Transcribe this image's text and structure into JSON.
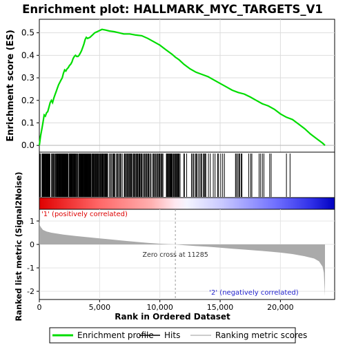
{
  "chart_data": [
    {
      "type": "line",
      "panel": "enrichment-profile",
      "title": "Enrichment plot: HALLMARK_MYC_TARGETS_V1",
      "ylabel": "Enrichment score (ES)",
      "xlim": [
        0,
        24500
      ],
      "ylim": [
        -0.03,
        0.56
      ],
      "yticks": [
        0.0,
        0.1,
        0.2,
        0.3,
        0.4,
        0.5
      ],
      "ytick_labels": [
        "0.0",
        "0.1",
        "0.2",
        "0.3",
        "0.4",
        "0.5"
      ],
      "grid": true,
      "series": [
        {
          "name": "Enrichment profile",
          "color": "#00dd00",
          "x": [
            0,
            100,
            200,
            300,
            400,
            500,
            600,
            700,
            800,
            900,
            1000,
            1100,
            1200,
            1300,
            1400,
            1500,
            1600,
            1700,
            1800,
            1900,
            2000,
            2100,
            2200,
            2300,
            2400,
            2500,
            2600,
            2700,
            2800,
            2900,
            3000,
            3100,
            3200,
            3300,
            3400,
            3500,
            3600,
            3700,
            3800,
            3900,
            4000,
            4200,
            4400,
            4600,
            4800,
            5000,
            5200,
            5500,
            5800,
            6200,
            6600,
            7000,
            7500,
            8000,
            8500,
            9000,
            9500,
            10000,
            10500,
            11000,
            11285,
            11600,
            12000,
            12500,
            13000,
            13500,
            14000,
            14500,
            15000,
            15500,
            16000,
            16500,
            17000,
            17500,
            18000,
            18500,
            19000,
            19500,
            20000,
            20500,
            21000,
            21500,
            22000,
            22500,
            23000,
            23500,
            23700
          ],
          "y": [
            0.0,
            0.04,
            0.07,
            0.1,
            0.135,
            0.13,
            0.145,
            0.15,
            0.17,
            0.19,
            0.2,
            0.19,
            0.21,
            0.225,
            0.24,
            0.255,
            0.27,
            0.28,
            0.29,
            0.3,
            0.32,
            0.335,
            0.33,
            0.34,
            0.345,
            0.355,
            0.36,
            0.37,
            0.385,
            0.395,
            0.4,
            0.395,
            0.395,
            0.4,
            0.41,
            0.42,
            0.435,
            0.45,
            0.47,
            0.48,
            0.475,
            0.48,
            0.49,
            0.5,
            0.505,
            0.51,
            0.515,
            0.512,
            0.508,
            0.505,
            0.5,
            0.495,
            0.495,
            0.49,
            0.487,
            0.475,
            0.46,
            0.445,
            0.425,
            0.405,
            0.392,
            0.38,
            0.36,
            0.34,
            0.325,
            0.315,
            0.305,
            0.29,
            0.275,
            0.26,
            0.245,
            0.235,
            0.228,
            0.215,
            0.2,
            0.185,
            0.175,
            0.16,
            0.14,
            0.125,
            0.115,
            0.095,
            0.075,
            0.05,
            0.03,
            0.01,
            0.0
          ]
        }
      ]
    },
    {
      "type": "hits",
      "panel": "gene-set-hits",
      "hit_segments": [
        [
          60,
          80,
          12
        ],
        [
          200,
          900,
          26
        ],
        [
          1000,
          1300,
          6
        ],
        [
          1350,
          2400,
          30
        ],
        [
          2450,
          3200,
          18
        ],
        [
          3250,
          4300,
          34
        ],
        [
          4350,
          5700,
          30
        ],
        [
          5800,
          6900,
          14
        ],
        [
          7000,
          8600,
          26
        ],
        [
          8650,
          9300,
          10
        ],
        [
          9400,
          10300,
          14
        ],
        [
          10500,
          11700,
          22
        ],
        [
          11900,
          12300,
          3
        ],
        [
          12600,
          13900,
          14
        ],
        [
          14000,
          15500,
          9
        ],
        [
          16200,
          16900,
          7
        ],
        [
          17300,
          17700,
          3
        ],
        [
          18200,
          18700,
          4
        ],
        [
          19100,
          19300,
          2
        ],
        [
          20500,
          20700,
          1
        ],
        [
          20800,
          21000,
          1
        ]
      ]
    },
    {
      "type": "heatmap",
      "panel": "rank-color-bar",
      "colormap": [
        "#e00000",
        "#ff9999",
        "#ffffff",
        "#9999ff",
        "#0000cc"
      ]
    },
    {
      "type": "area",
      "panel": "ranked-list-metric",
      "ylabel": "Ranked list metric (Signal2Noise)",
      "xlabel": "Rank in Ordered Dataset",
      "xlim": [
        0,
        24500
      ],
      "ylim": [
        -2.35,
        1.5
      ],
      "yticks": [
        1,
        0,
        -1,
        -2
      ],
      "ytick_labels": [
        "1",
        "0",
        "-1",
        "-2"
      ],
      "xticks": [
        0,
        5000,
        10000,
        15000,
        20000
      ],
      "xtick_labels": [
        "0",
        "5,000",
        "10,000",
        "15,000",
        "20,000"
      ],
      "x": [
        0,
        50,
        150,
        300,
        600,
        1000,
        2000,
        3000,
        4000,
        5000,
        6000,
        7000,
        8000,
        9000,
        10000,
        11285,
        12000,
        13000,
        14000,
        15000,
        16000,
        17000,
        18000,
        19000,
        20000,
        21000,
        22000,
        22800,
        23200,
        23500,
        23600,
        23700
      ],
      "y": [
        1.0,
        0.8,
        0.72,
        0.62,
        0.55,
        0.5,
        0.42,
        0.36,
        0.31,
        0.26,
        0.21,
        0.16,
        0.11,
        0.07,
        0.03,
        0.0,
        -0.03,
        -0.07,
        -0.1,
        -0.14,
        -0.18,
        -0.22,
        -0.26,
        -0.3,
        -0.35,
        -0.41,
        -0.5,
        -0.6,
        -0.72,
        -0.95,
        -1.2,
        -2.2
      ],
      "color": "#aaaaaa",
      "zero_cross": 11285,
      "annotations": {
        "zero_cross": "Zero cross at 11285",
        "positive": "'1' (positively correlated)",
        "negative": "'2' (negatively correlated)"
      }
    }
  ],
  "legend": {
    "placement": "bottom",
    "items": [
      {
        "label": "Enrichment profile",
        "color": "#00dd00"
      },
      {
        "label": "Hits",
        "color": "#000000"
      },
      {
        "label": "Ranking metric scores",
        "color": "#bbbbbb"
      }
    ]
  },
  "colors": {
    "positive_label": "#dd0000",
    "negative_label": "#2222cc"
  }
}
